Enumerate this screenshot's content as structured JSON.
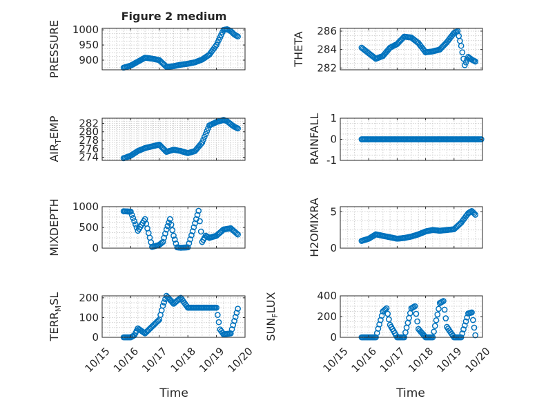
{
  "figure_title": "Figure 2 medium",
  "marker_color": "#0072BD",
  "xaxis": {
    "label": "Time",
    "ticks": [
      {
        "day": 15,
        "label": "10/15"
      },
      {
        "day": 16,
        "label": "10/16"
      },
      {
        "day": 17,
        "label": "10/17"
      },
      {
        "day": 18,
        "label": "10/18"
      },
      {
        "day": 19,
        "label": "10/19"
      },
      {
        "day": 20,
        "label": "10/20"
      }
    ]
  },
  "chart_data": [
    {
      "type": "scatter",
      "ylabel": "PRESSURE",
      "xlim": [
        "10/15",
        "10/20"
      ],
      "ylim": [
        868,
        1005
      ],
      "yticks": [
        {
          "v": 900,
          "label": "900"
        },
        {
          "v": 950,
          "label": "950"
        },
        {
          "v": 1000,
          "label": "1000"
        }
      ],
      "series": [
        {
          "x": [
            "10/15 18:00",
            "10/16 00:00",
            "10/16 06:00",
            "10/16 12:00",
            "10/16 18:00",
            "10/17 00:00",
            "10/17 06:00",
            "10/17 12:00",
            "10/17 18:00",
            "10/18 00:00",
            "10/18 06:00",
            "10/18 12:00",
            "10/18 18:00",
            "10/19 00:00",
            "10/19 03:00",
            "10/19 06:00",
            "10/19 09:00",
            "10/19 12:00",
            "10/19 15:00",
            "10/19 18:00"
          ],
          "y": [
            875,
            882,
            895,
            908,
            905,
            900,
            878,
            880,
            885,
            888,
            893,
            902,
            918,
            950,
            975,
            1000,
            1002,
            996,
            985,
            978
          ]
        }
      ]
    },
    {
      "type": "scatter",
      "ylabel": "THETA",
      "xlim": [
        "10/15",
        "10/20"
      ],
      "ylim": [
        281.8,
        286.3
      ],
      "yticks": [
        {
          "v": 282,
          "label": "282"
        },
        {
          "v": 284,
          "label": "284"
        },
        {
          "v": 286,
          "label": "286"
        }
      ],
      "series": [
        {
          "x": [
            "10/15 18:00",
            "10/16 00:00",
            "10/16 06:00",
            "10/16 12:00",
            "10/16 18:00",
            "10/17 00:00",
            "10/17 06:00",
            "10/17 12:00",
            "10/17 18:00",
            "10/18 00:00",
            "10/18 06:00",
            "10/18 12:00",
            "10/18 18:00",
            "10/19 00:00",
            "10/19 03:00",
            "10/19 06:00",
            "10/19 09:00",
            "10/19 12:00",
            "10/19 15:00",
            "10/19 18:00"
          ],
          "y": [
            284.2,
            283.6,
            283.0,
            283.3,
            284.2,
            284.6,
            285.4,
            285.3,
            284.7,
            283.7,
            283.8,
            284.0,
            284.8,
            285.8,
            286.0,
            284.4,
            282.3,
            283.2,
            282.9,
            282.7
          ]
        }
      ]
    },
    {
      "type": "scatter",
      "ylabel": "AIR_TEMP",
      "xlim": [
        "10/15",
        "10/20"
      ],
      "ylim": [
        273.3,
        283.2
      ],
      "yticks": [
        {
          "v": 274,
          "label": "274"
        },
        {
          "v": 276,
          "label": "276"
        },
        {
          "v": 278,
          "label": "278"
        },
        {
          "v": 280,
          "label": "280"
        },
        {
          "v": 282,
          "label": "282"
        }
      ],
      "series": [
        {
          "x": [
            "10/15 18:00",
            "10/16 00:00",
            "10/16 06:00",
            "10/16 12:00",
            "10/16 18:00",
            "10/17 00:00",
            "10/17 06:00",
            "10/17 12:00",
            "10/17 18:00",
            "10/18 00:00",
            "10/18 06:00",
            "10/18 12:00",
            "10/18 18:00",
            "10/19 00:00",
            "10/19 06:00",
            "10/19 09:00",
            "10/19 12:00",
            "10/19 15:00",
            "10/19 18:00"
          ],
          "y": [
            273.8,
            274.4,
            275.5,
            276.2,
            276.6,
            277.0,
            275.3,
            275.8,
            275.5,
            275.0,
            275.5,
            277.5,
            281.5,
            282.3,
            282.8,
            282.5,
            281.8,
            281.2,
            280.8
          ]
        }
      ]
    },
    {
      "type": "scatter",
      "ylabel": "RAINFALL",
      "xlim": [
        "10/15",
        "10/20"
      ],
      "ylim": [
        -1,
        1
      ],
      "yticks": [
        {
          "v": -1,
          "label": "-1"
        },
        {
          "v": 0,
          "label": "0"
        },
        {
          "v": 1,
          "label": "1"
        }
      ],
      "series": [
        {
          "x": [
            "10/15 18:00",
            "10/16 00:00",
            "10/16 12:00",
            "10/17 00:00",
            "10/17 12:00",
            "10/18 00:00",
            "10/18 12:00",
            "10/19 00:00",
            "10/19 12:00",
            "10/19 23:00"
          ],
          "y": [
            0,
            0,
            0,
            0,
            0,
            0,
            0,
            0,
            0,
            0
          ]
        }
      ]
    },
    {
      "type": "scatter",
      "ylabel": "MIXDEPTH",
      "xlim": [
        "10/15",
        "10/20"
      ],
      "ylim": [
        0,
        1000
      ],
      "yticks": [
        {
          "v": 0,
          "label": "0"
        },
        {
          "v": 500,
          "label": "500"
        },
        {
          "v": 1000,
          "label": "1000"
        }
      ],
      "series": [
        {
          "x": [
            "10/15 18:00",
            "10/16 00:00",
            "10/16 06:00",
            "10/16 12:00",
            "10/16 18:00",
            "10/17 00:00",
            "10/17 03:00",
            "10/17 06:00",
            "10/17 09:00",
            "10/17 12:00",
            "10/17 15:00",
            "10/17 18:00",
            "10/18 00:00",
            "10/18 06:00",
            "10/18 09:00",
            "10/18 12:00",
            "10/18 15:00",
            "10/18 18:00",
            "10/19 00:00",
            "10/19 06:00",
            "10/19 12:00",
            "10/19 18:00"
          ],
          "y": [
            890,
            880,
            420,
            700,
            30,
            80,
            150,
            450,
            700,
            300,
            20,
            10,
            20,
            600,
            900,
            150,
            300,
            250,
            300,
            450,
            480,
            330
          ]
        }
      ]
    },
    {
      "type": "scatter",
      "ylabel": "H2OMIXRA",
      "xlim": [
        "10/15",
        "10/20"
      ],
      "ylim": [
        0,
        5.7
      ],
      "yticks": [
        {
          "v": 0,
          "label": "0"
        },
        {
          "v": 5,
          "label": "5"
        }
      ],
      "series": [
        {
          "x": [
            "10/15 18:00",
            "10/16 00:00",
            "10/16 06:00",
            "10/16 12:00",
            "10/16 18:00",
            "10/17 00:00",
            "10/17 06:00",
            "10/17 12:00",
            "10/17 18:00",
            "10/18 00:00",
            "10/18 06:00",
            "10/18 12:00",
            "10/18 18:00",
            "10/19 00:00",
            "10/19 06:00",
            "10/19 12:00",
            "10/19 15:00",
            "10/19 18:00"
          ],
          "y": [
            1.0,
            1.3,
            1.9,
            1.7,
            1.5,
            1.3,
            1.4,
            1.6,
            1.9,
            2.3,
            2.5,
            2.4,
            2.5,
            2.6,
            3.5,
            4.8,
            5.1,
            4.6
          ]
        }
      ]
    },
    {
      "type": "scatter",
      "ylabel": "TERR_MSL",
      "xlim": [
        "10/15",
        "10/20"
      ],
      "ylim": [
        0,
        210
      ],
      "yticks": [
        {
          "v": 0,
          "label": "0"
        },
        {
          "v": 100,
          "label": "100"
        },
        {
          "v": 200,
          "label": "200"
        }
      ],
      "series": [
        {
          "x": [
            "10/15 18:00",
            "10/16 00:00",
            "10/16 03:00",
            "10/16 06:00",
            "10/16 12:00",
            "10/16 18:00",
            "10/17 00:00",
            "10/17 03:00",
            "10/17 06:00",
            "10/17 12:00",
            "10/17 18:00",
            "10/18 00:00",
            "10/18 06:00",
            "10/18 12:00",
            "10/18 18:00",
            "10/19 00:00",
            "10/19 03:00",
            "10/19 06:00",
            "10/19 12:00",
            "10/19 18:00"
          ],
          "y": [
            0,
            0,
            10,
            45,
            20,
            55,
            90,
            160,
            210,
            170,
            200,
            150,
            150,
            150,
            150,
            150,
            40,
            15,
            20,
            145
          ]
        }
      ]
    },
    {
      "type": "scatter",
      "ylabel": "SUN_FLUX",
      "xlim": [
        "10/15",
        "10/20"
      ],
      "ylim": [
        0,
        400
      ],
      "yticks": [
        {
          "v": 0,
          "label": "0"
        },
        {
          "v": 200,
          "label": "200"
        },
        {
          "v": 400,
          "label": "400"
        }
      ],
      "series": [
        {
          "x": [
            "10/15 18:00",
            "10/16 00:00",
            "10/16 06:00",
            "10/16 12:00",
            "10/16 15:00",
            "10/16 18:00",
            "10/17 00:00",
            "10/17 06:00",
            "10/17 12:00",
            "10/17 15:00",
            "10/17 18:00",
            "10/18 00:00",
            "10/18 06:00",
            "10/18 12:00",
            "10/18 15:00",
            "10/18 18:00",
            "10/19 00:00",
            "10/19 06:00",
            "10/19 12:00",
            "10/19 15:00",
            "10/19 18:00"
          ],
          "y": [
            0,
            0,
            0,
            250,
            280,
            120,
            0,
            0,
            280,
            300,
            80,
            0,
            0,
            330,
            350,
            100,
            0,
            0,
            230,
            240,
            20
          ]
        }
      ]
    }
  ]
}
